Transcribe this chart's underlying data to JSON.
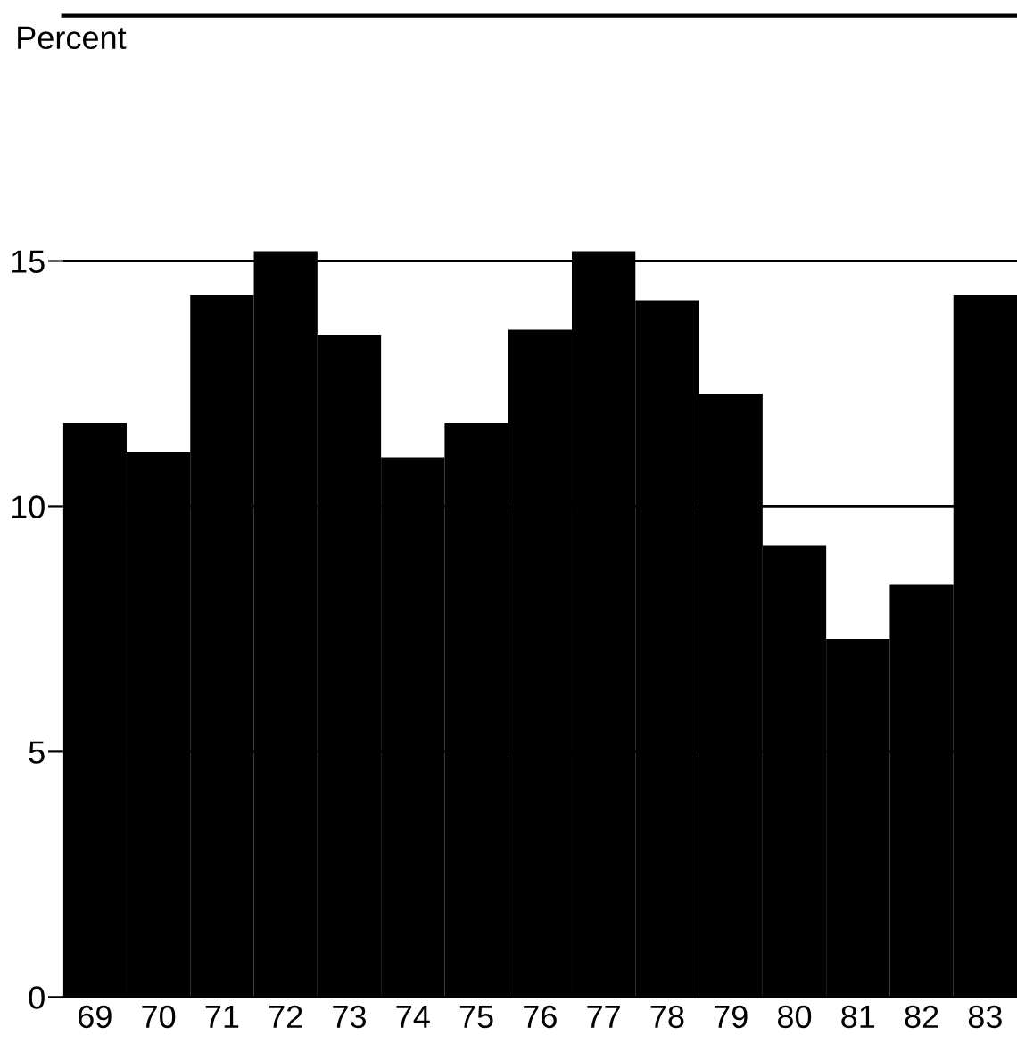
{
  "chart_data": {
    "type": "bar",
    "ylabel": "Percent",
    "categories": [
      "69",
      "70",
      "71",
      "72",
      "73",
      "74",
      "75",
      "76",
      "77",
      "78",
      "79",
      "80",
      "81",
      "82",
      "83"
    ],
    "values": [
      11.7,
      11.1,
      14.3,
      15.2,
      13.5,
      11.0,
      11.7,
      13.6,
      15.2,
      14.2,
      12.3,
      9.2,
      7.3,
      8.4,
      14.3
    ],
    "color": "#000000",
    "ylim": [
      0,
      20
    ],
    "yticks": [
      0,
      5,
      10,
      15
    ],
    "grid": "y"
  }
}
